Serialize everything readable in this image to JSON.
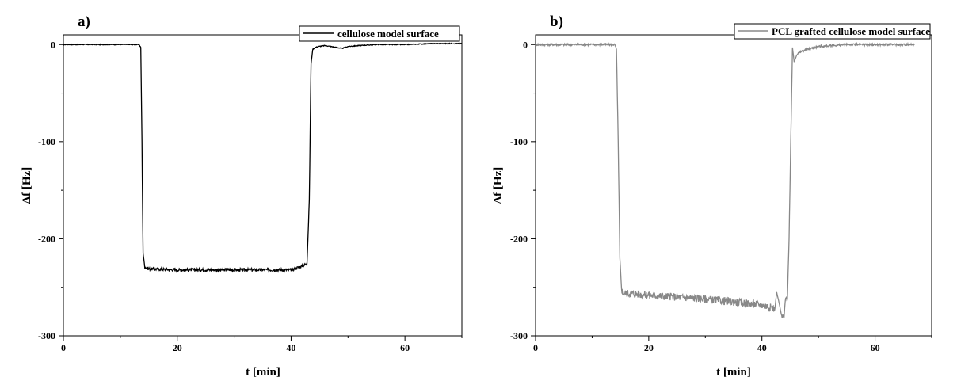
{
  "chart_data": [
    {
      "type": "line",
      "panel_label": "a)",
      "xlabel": "t [min]",
      "ylabel": "Δf [Hz]",
      "xlim": [
        0,
        70
      ],
      "ylim": [
        -300,
        10
      ],
      "xticks": [
        0,
        20,
        40,
        60
      ],
      "yticks": [
        0,
        -100,
        -200,
        -300
      ],
      "legend_position": "top-right",
      "series": [
        {
          "name": "cellulose model surface",
          "color": "#000000",
          "x": [
            0,
            5,
            10,
            12.5,
            13.3,
            13.6,
            13.8,
            14.0,
            14.3,
            15,
            20,
            25,
            30,
            35,
            40,
            42,
            42.8,
            43.2,
            43.5,
            43.8,
            44.2,
            44.8,
            46,
            47,
            48,
            49,
            50,
            52,
            55,
            60,
            65,
            70
          ],
          "y": [
            0,
            0,
            0,
            0,
            0,
            -3,
            -100,
            -215,
            -229,
            -231,
            -232,
            -232,
            -232,
            -232,
            -232,
            -228,
            -226,
            -160,
            -20,
            -5,
            -3,
            -2,
            -1,
            -2,
            -3,
            -4,
            -2,
            -1,
            0,
            0,
            1,
            1
          ],
          "noise": 1.5
        }
      ]
    },
    {
      "type": "line",
      "panel_label": "b)",
      "xlabel": "t [min]",
      "ylabel": "Δf [Hz]",
      "xlim": [
        0,
        70
      ],
      "ylim": [
        -300,
        10
      ],
      "xticks": [
        0,
        20,
        40,
        60
      ],
      "yticks": [
        0,
        -100,
        -200,
        -300
      ],
      "legend_position": "top-right",
      "series": [
        {
          "name": "PCL grafted cellulose model surface",
          "color": "#888888",
          "x": [
            0,
            5,
            10,
            14.0,
            14.3,
            14.6,
            14.9,
            15.2,
            15.6,
            16,
            20,
            25,
            30,
            35,
            40,
            42.3,
            42.6,
            43.0,
            43.5,
            43.9,
            44.2,
            44.5,
            44.8,
            45.1,
            45.4,
            45.7,
            46.2,
            47,
            48,
            50,
            55,
            60,
            65,
            67
          ],
          "y": [
            0,
            0,
            0,
            0,
            -5,
            -100,
            -220,
            -252,
            -256,
            -256,
            -258,
            -260,
            -262,
            -265,
            -268,
            -272,
            -255,
            -265,
            -280,
            -282,
            -258,
            -262,
            -200,
            -100,
            -3,
            -18,
            -10,
            -7,
            -5,
            -2,
            0,
            0,
            0,
            0
          ],
          "noise": 4
        }
      ]
    }
  ]
}
